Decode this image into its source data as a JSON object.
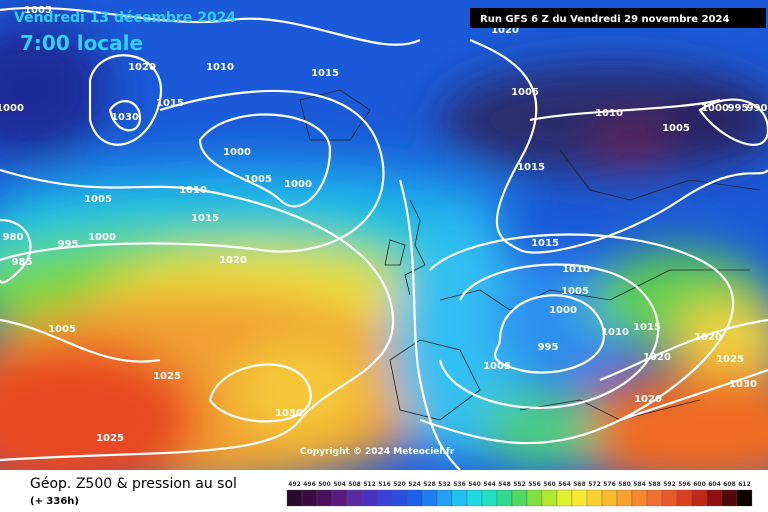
{
  "header": {
    "date": "Vendredi 13 décembre 2024",
    "time": "7:00 locale"
  },
  "run_info": "Run GFS 6 Z du Vendredi 29 novembre 2024",
  "copyright": "Copyright © 2024 Meteociel.fr",
  "isobar_labels": [
    "1005",
    "1020",
    "1020",
    "1010",
    "1015",
    "1000",
    "1030",
    "1015",
    "1000",
    "1005",
    "1000",
    "1010",
    "1005",
    "1015",
    "1020",
    "980",
    "985",
    "995",
    "1000",
    "1005",
    "1010",
    "1005",
    "1000",
    "995",
    "990",
    "1015",
    "1015",
    "1010",
    "1005",
    "1000",
    "1010",
    "1015",
    "995",
    "1005",
    "1020",
    "1020",
    "1025",
    "1030",
    "1020",
    "1025",
    "1030",
    "1025",
    "1005"
  ],
  "footer": {
    "title": "Géop. Z500 & pression au sol",
    "lead": "(+ 336h)"
  },
  "legend": {
    "labels": [
      "492",
      "496",
      "500",
      "504",
      "508",
      "512",
      "516",
      "520",
      "524",
      "528",
      "532",
      "536",
      "540",
      "544",
      "548",
      "552",
      "556",
      "560",
      "564",
      "568",
      "572",
      "576",
      "580",
      "584",
      "588",
      "592",
      "596",
      "600",
      "604",
      "608",
      "612"
    ]
  }
}
